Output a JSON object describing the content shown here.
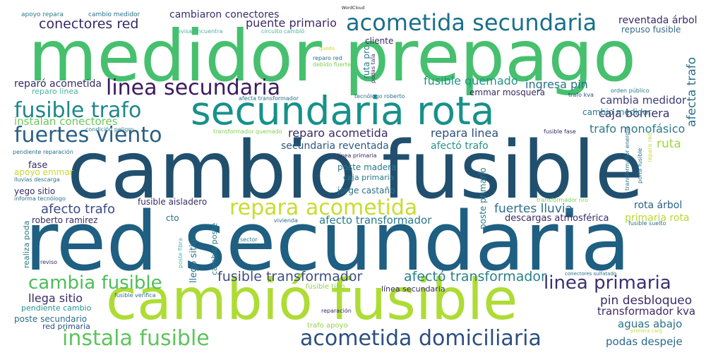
{
  "title": "WordCloud",
  "words": [
    {
      "text": "cambio fusible",
      "color": "#21506e"
    },
    {
      "text": "red secundaria",
      "color": "#1e5f82"
    },
    {
      "text": "medidor prepago",
      "color": "#46c06e"
    },
    {
      "text": "cambió fusible",
      "color": "#aedc35"
    },
    {
      "text": "secundaria rota",
      "color": "#17918a"
    },
    {
      "text": "linea secundaria",
      "color": "#3b1a5e"
    },
    {
      "text": "acometida secundaria",
      "color": "#1a6f8a"
    },
    {
      "text": "fusible trafo",
      "color": "#20878c"
    },
    {
      "text": "fuertes viento",
      "color": "#2a5f84"
    },
    {
      "text": "repara acometida",
      "color": "#c8dc30"
    },
    {
      "text": "acometida domiciliaria",
      "color": "#2c4f80"
    },
    {
      "text": "instala fusible",
      "color": "#5ec45c"
    },
    {
      "text": "cambia fusible",
      "color": "#4fbd5a"
    },
    {
      "text": "linea primaria",
      "color": "#3b3070"
    },
    {
      "text": "fusible transformador",
      "color": "#3b4d84"
    },
    {
      "text": "afectó transformador",
      "color": "#2a7f8c"
    },
    {
      "text": "conectores red",
      "color": "#342a66"
    },
    {
      "text": "afecto trafo",
      "color": "#3a4a86"
    },
    {
      "text": "afecta trafo",
      "color": "#2c6c8a"
    },
    {
      "text": "puente primario",
      "color": "#3a2a64"
    },
    {
      "text": "fusible quemado",
      "color": "#22958a"
    },
    {
      "text": "ingresa pin",
      "color": "#2a6f8a"
    },
    {
      "text": "caja bornera",
      "color": "#3a2e6a"
    },
    {
      "text": "trafo monofásico",
      "color": "#2a7a8a"
    },
    {
      "text": "reparo acometida",
      "color": "#3a2a66"
    },
    {
      "text": "repara linea",
      "color": "#2a4f7e"
    },
    {
      "text": "secundaria reventada",
      "color": "#2c5a84"
    },
    {
      "text": "afectó trafo",
      "color": "#23948a"
    },
    {
      "text": "cambia medidor",
      "color": "#3a3a74"
    },
    {
      "text": "ruta",
      "color": "#9fd63a"
    },
    {
      "text": "fuertes lluvia",
      "color": "#2a6f8a"
    },
    {
      "text": "pin desbloqueo",
      "color": "#3a2a64"
    },
    {
      "text": "transformador kva",
      "color": "#3a2a66"
    },
    {
      "text": "aguas abajo",
      "color": "#2a6f8a"
    },
    {
      "text": "podas despeje",
      "color": "#2a6a8a"
    },
    {
      "text": "llega sitio",
      "color": "#3a2a66"
    },
    {
      "text": "cambiaron conectores",
      "color": "#3b2d6a"
    },
    {
      "text": "reparó acometida",
      "color": "#3a2a66"
    },
    {
      "text": "instalan conectores",
      "color": "#6ac85a"
    },
    {
      "text": "afecto transformador",
      "color": "#2a7a8a"
    },
    {
      "text": "fusible aisladero",
      "color": "#3a2a66"
    },
    {
      "text": "roberto ramirez",
      "color": "#3a2a66"
    },
    {
      "text": "cambio medidor",
      "color": "#2a7a8a"
    },
    {
      "text": "reventada árbol",
      "color": "#3a2a66"
    },
    {
      "text": "repuso fusible",
      "color": "#3a6a8a"
    },
    {
      "text": "rota árbol",
      "color": "#2a5f84"
    },
    {
      "text": "primaria rota",
      "color": "#b6d834"
    },
    {
      "text": "descargas atmosférica",
      "color": "#3a2a66"
    },
    {
      "text": "fase",
      "color": "#3a2a66"
    },
    {
      "text": "apoyo emmar",
      "color": "#c8d838"
    },
    {
      "text": "emmar mosquera",
      "color": "#3a2a66"
    },
    {
      "text": "cliente",
      "color": "#3a2a66"
    },
    {
      "text": "jorge castaño",
      "color": "#2a6f8a"
    },
    {
      "text": "poste madera",
      "color": "#2a7a8a"
    },
    {
      "text": "yego sitio",
      "color": "#3a2a66"
    },
    {
      "text": "poste secundario",
      "color": "#2a6f8a"
    },
    {
      "text": "pendiente cambio",
      "color": "#23948a"
    },
    {
      "text": "red primaria",
      "color": "#2a4f7e"
    },
    {
      "text": "línea secundaria",
      "color": "#3a2a66"
    },
    {
      "text": "llegó sitio",
      "color": "#2a6f8a"
    },
    {
      "text": "poste primario",
      "color": "#2a7a8a"
    },
    {
      "text": "cto",
      "color": "#2a6f8a"
    },
    {
      "text": "realiza poda",
      "color": "#2a7a8a"
    },
    {
      "text": "cambio poste",
      "color": "#2a7a8a"
    },
    {
      "text": "reparo linea",
      "color": "#4ab4a0"
    },
    {
      "text": "ruta pro",
      "color": "#2a7a8a"
    },
    {
      "text": "caja primaria",
      "color": "#2a7a8a"
    },
    {
      "text": "fusible tipo",
      "color": "#8fd44a"
    },
    {
      "text": "trafo apoyo",
      "color": "#8fd44a"
    },
    {
      "text": "apoyo repara",
      "color": "#2a7a8a"
    },
    {
      "text": "cambio medidor",
      "color": "#2a6f8a"
    },
    {
      "text": "revisa encuentra",
      "color": "#4ab4a0"
    },
    {
      "text": "circuito cambió",
      "color": "#4ab4a0"
    },
    {
      "text": "reparo red",
      "color": "#2a6f8a"
    },
    {
      "text": "debido fuerte",
      "color": "#7ccf50"
    },
    {
      "text": "quedo",
      "color": "#c8d838"
    },
    {
      "text": "podas tala",
      "color": "#3a2a66"
    },
    {
      "text": "afecta transformador",
      "color": "#2a6f8a"
    },
    {
      "text": "tecnólogo roberto",
      "color": "#2a6f8a"
    },
    {
      "text": "condición peligro",
      "color": "#2a7a8a"
    },
    {
      "text": "transformador quemado",
      "color": "#7ccf50"
    },
    {
      "text": "pendiente reparación",
      "color": "#2a6f8a"
    },
    {
      "text": "lluvias descarga",
      "color": "#2a6f8a"
    },
    {
      "text": "informa tecnólogo",
      "color": "#2a6f8a"
    },
    {
      "text": "línea primaria",
      "color": "#3a2a66"
    },
    {
      "text": "vivienda",
      "color": "#2a6f8a"
    },
    {
      "text": "sector",
      "color": "#2a7a8a"
    },
    {
      "text": "reviso",
      "color": "#3a2a66"
    },
    {
      "text": "poste fibra",
      "color": "#4ab4a0"
    },
    {
      "text": "fusible verifica",
      "color": "#2a6f8a"
    },
    {
      "text": "reparación",
      "color": "#3a2a66"
    },
    {
      "text": "fusible fase",
      "color": "#3a2a66"
    },
    {
      "text": "trafo kva",
      "color": "#2a4f7e"
    },
    {
      "text": "orden público",
      "color": "#2a7a8a"
    },
    {
      "text": "transformador nro",
      "color": "#7ccf50"
    },
    {
      "text": "conectores sulfatado",
      "color": "#2a6f8a"
    },
    {
      "text": "porta fusible",
      "color": "#2a6f8a"
    },
    {
      "text": "fusible suelto",
      "color": "#2a6f8a"
    },
    {
      "text": "repara red",
      "color": "#c8d838"
    },
    {
      "text": "transformador energía",
      "color": "#2a6f8a"
    },
    {
      "text": "primera carg",
      "color": "#c8d838"
    }
  ]
}
